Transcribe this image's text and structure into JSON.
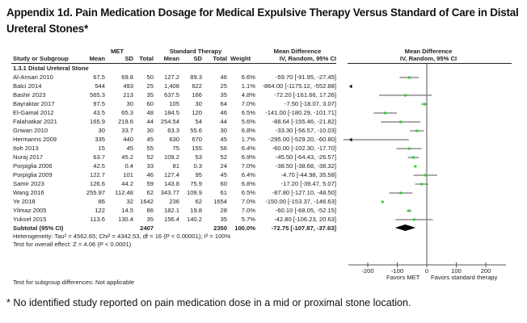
{
  "title": "Appendix 1d. Pain Medication Dosage for Medical Expulsive Therapy Versus Standard of Care in Distal Ureteral Stones*",
  "footnote": "* No identified study reported on pain medication dose in a mid or proximal stone location.",
  "headers": {
    "group_met": "MET",
    "group_std": "Standard Therapy",
    "group_md_left": "Mean Difference",
    "group_md_right": "Mean Difference",
    "study": "Study or Subgroup",
    "mean": "Mean",
    "sd": "SD",
    "total": "Total",
    "mean2": "Mean",
    "sd2": "SD",
    "total2": "Total",
    "weight": "Weight",
    "ci_left": "IV, Random, 95% CI",
    "ci_right": "IV, Random, 95% CI"
  },
  "subgroup_label": "1.3.1 Distal Ureteral Stone",
  "subtotal": {
    "label": "Subtotal (95% CI)",
    "met_total": "2407",
    "std_total": "2350",
    "weight": "100.0%",
    "ci_text": "-72.75 [-107.87, -37.63]"
  },
  "heterogeneity": "Heterogeneity: Tau² = 4562.65; Chi² = 4342.53, df = 16 (P < 0.00001); I² = 100%",
  "overall_effect": "Test for overall effect: Z = 4.06 (P < 0.0001)",
  "subgroup_diff": "Test for subgroup differences: Not applicable",
  "chart_data": {
    "type": "forest",
    "title": "Mean Difference IV, Random, 95% CI",
    "xlabel_left": "Favors MET",
    "xlabel_right": "Favors standard therapy",
    "xlim": [
      -250,
      250
    ],
    "xticks": [
      -200,
      -100,
      0,
      100,
      200
    ],
    "xtick_labels": [
      "-200",
      "-100",
      "0",
      "100",
      "200"
    ],
    "marker_color": "#33cc33",
    "line_color": "#777777",
    "diamond_color": "#000000",
    "studies": [
      {
        "name": "Al-Ansari 2010",
        "met_mean": "67.5",
        "met_sd": "69.8",
        "met_total": "50",
        "std_mean": "127.2",
        "std_sd": "89.3",
        "std_total": "46",
        "weight": "6.6%",
        "ci_text": "-59.70 [-91.95, -27.45]",
        "md": -59.7,
        "lo": -91.95,
        "hi": -27.45
      },
      {
        "name": "Balci 2014",
        "met_mean": "544",
        "met_sd": "493",
        "met_total": "25",
        "std_mean": "1,408",
        "std_sd": "622",
        "std_total": "25",
        "weight": "1.1%",
        "ci_text": "-864.00 [-1175.12, -552.88]",
        "md": -864.0,
        "lo": -1175.12,
        "hi": -552.88
      },
      {
        "name": "Bashir 2023",
        "met_mean": "565.3",
        "met_sd": "213",
        "met_total": "35",
        "std_mean": "637.5",
        "std_sd": "166",
        "std_total": "35",
        "weight": "4.8%",
        "ci_text": "-72.20 [-161.66, 17.26]",
        "md": -72.2,
        "lo": -161.66,
        "hi": 17.26
      },
      {
        "name": "Bayraktar 2017",
        "met_mean": "97.5",
        "met_sd": "30",
        "met_total": "60",
        "std_mean": "105",
        "std_sd": "30",
        "std_total": "64",
        "weight": "7.0%",
        "ci_text": "-7.50 [-18.07, 3.07]",
        "md": -7.5,
        "lo": -18.07,
        "hi": 3.07
      },
      {
        "name": "El-Gamal 2012",
        "met_mean": "43.5",
        "met_sd": "65.3",
        "met_total": "48",
        "std_mean": "184.5",
        "std_sd": "120",
        "std_total": "46",
        "weight": "6.5%",
        "ci_text": "-141.00 [-180.29, -101.71]",
        "md": -141.0,
        "lo": -180.29,
        "hi": -101.71
      },
      {
        "name": "Falahatkar 2021",
        "met_mean": "165.9",
        "met_sd": "219.6",
        "met_total": "44",
        "std_mean": "254.54",
        "std_sd": "54",
        "std_total": "44",
        "weight": "5.6%",
        "ci_text": "-88.64 [-155.46, -21.82]",
        "md": -88.64,
        "lo": -155.46,
        "hi": -21.82
      },
      {
        "name": "Griwan 2010",
        "met_mean": "30",
        "met_sd": "33.7",
        "met_total": "30",
        "std_mean": "63.3",
        "std_sd": "55.6",
        "std_total": "30",
        "weight": "6.8%",
        "ci_text": "-33.30 [-56.57, -10.03]",
        "md": -33.3,
        "lo": -56.57,
        "hi": -10.03
      },
      {
        "name": "Hermanns 2009",
        "met_mean": "335",
        "met_sd": "440",
        "met_total": "45",
        "std_mean": "630",
        "std_sd": "670",
        "std_total": "45",
        "weight": "1.7%",
        "ci_text": "-295.00 [-529.20, -60.80]",
        "md": -295.0,
        "lo": -529.2,
        "hi": -60.8
      },
      {
        "name": "Itoh 2013",
        "met_mean": "15",
        "met_sd": "45",
        "met_total": "55",
        "std_mean": "75",
        "std_sd": "155",
        "std_total": "56",
        "weight": "6.4%",
        "ci_text": "-60.00 [-102.30, -17.70]",
        "md": -60.0,
        "lo": -102.3,
        "hi": -17.7
      },
      {
        "name": "Nuraj 2017",
        "met_mean": "63.7",
        "met_sd": "45.2",
        "met_total": "52",
        "std_mean": "109.2",
        "std_sd": "53",
        "std_total": "52",
        "weight": "6.9%",
        "ci_text": "-45.50 [-64.43, -26.57]",
        "md": -45.5,
        "lo": -64.43,
        "hi": -26.57
      },
      {
        "name": "Porpiglia 2006",
        "met_mean": "42.5",
        "met_sd": "0.4",
        "met_total": "33",
        "std_mean": "81",
        "std_sd": "0.3",
        "std_total": "24",
        "weight": "7.0%",
        "ci_text": "-38.50 [-38.68, -38.32]",
        "md": -38.5,
        "lo": -38.68,
        "hi": -38.32
      },
      {
        "name": "Porpiglia 2009",
        "met_mean": "122.7",
        "met_sd": "101",
        "met_total": "46",
        "std_mean": "127.4",
        "std_sd": "95",
        "std_total": "45",
        "weight": "6.4%",
        "ci_text": "-4.70 [-44.98, 35.58]",
        "md": -4.7,
        "lo": -44.98,
        "hi": 35.58
      },
      {
        "name": "Samir 2023",
        "met_mean": "126.6",
        "met_sd": "44.2",
        "met_total": "59",
        "std_mean": "143.8",
        "std_sd": "75.9",
        "std_total": "60",
        "weight": "6.8%",
        "ci_text": "-17.20 [-39.47, 5.07]",
        "md": -17.2,
        "lo": -39.47,
        "hi": 5.07
      },
      {
        "name": "Wang 2016",
        "met_mean": "255.97",
        "met_sd": "112.48",
        "met_total": "62",
        "std_mean": "343.77",
        "std_sd": "109.9",
        "std_total": "61",
        "weight": "6.5%",
        "ci_text": "-87.80 [-127.10, -48.50]",
        "md": -87.8,
        "lo": -127.1,
        "hi": -48.5
      },
      {
        "name": "Ye 2018",
        "met_mean": "86",
        "met_sd": "32",
        "met_total": "1642",
        "std_mean": "236",
        "std_sd": "62",
        "std_total": "1654",
        "weight": "7.0%",
        "ci_text": "-150.00 [-153.37, -146.63]",
        "md": -150.0,
        "lo": -153.37,
        "hi": -146.63
      },
      {
        "name": "Yilmaz 2005",
        "met_mean": "122",
        "met_sd": "14.5",
        "met_total": "86",
        "std_mean": "182.1",
        "std_sd": "19.8",
        "std_total": "28",
        "weight": "7.0%",
        "ci_text": "-60.10 [-68.05, -52.15]",
        "md": -60.1,
        "lo": -68.05,
        "hi": -52.15
      },
      {
        "name": "Yuksel 2015",
        "met_mean": "113.6",
        "met_sd": "130.4",
        "met_total": "35",
        "std_mean": "156.4",
        "std_sd": "140.2",
        "std_total": "35",
        "weight": "5.7%",
        "ci_text": "-42.80 [-106.23, 20.63]",
        "md": -42.8,
        "lo": -106.23,
        "hi": 20.63
      }
    ],
    "pooled": {
      "md": -72.75,
      "lo": -107.87,
      "hi": -37.63
    }
  }
}
